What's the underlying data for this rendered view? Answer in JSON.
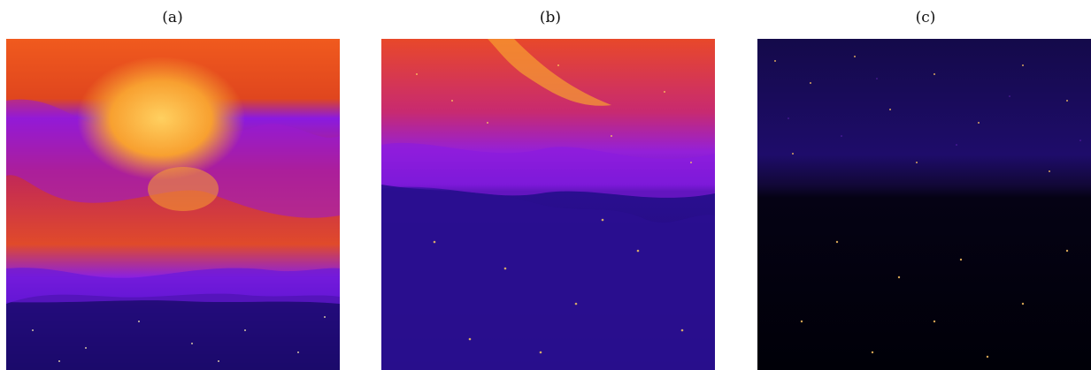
{
  "figure": {
    "panels": [
      {
        "label": "(a)",
        "image": "turbulent-mixing-field-a"
      },
      {
        "label": "(b)",
        "image": "turbulent-mixing-field-b"
      },
      {
        "label": "(c)",
        "image": "turbulent-mixing-field-c"
      }
    ],
    "colormap": [
      "#000010",
      "#1b0a6b",
      "#4a10c8",
      "#8a1ae0",
      "#d2226a",
      "#f0541a",
      "#f8a030",
      "#ffd060",
      "#fff3b0"
    ]
  }
}
